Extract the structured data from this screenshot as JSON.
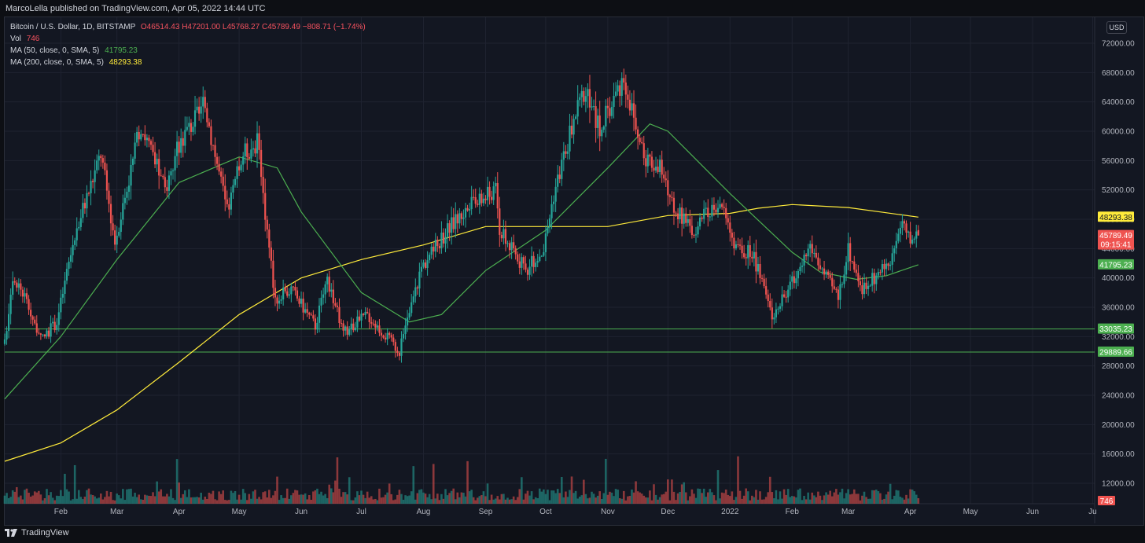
{
  "header": {
    "published_line": "MarcoLella published on TradingView.com, Apr 05, 2022 14:44 UTC",
    "currency_button": "USD"
  },
  "legend": {
    "symbol": "Bitcoin / U.S. Dollar, 1D, BITSTAMP",
    "open": "O46514.43",
    "high": "H47201.00",
    "low": "L45768.27",
    "close": "C45789.49",
    "change": "−808.71 (−1.74%)",
    "vol_label": "Vol",
    "vol_value": "746",
    "ma50_label": "MA (50, close, 0, SMA, 5)",
    "ma50_value": "41795.23",
    "ma200_label": "MA (200, close, 0, SMA, 5)",
    "ma200_value": "48293.38"
  },
  "footer": {
    "brand": "TradingView"
  },
  "colors": {
    "background": "#131722",
    "grid": "#1f2330",
    "up": "#26a69a",
    "down": "#ef5350",
    "ma50": "#4caf50",
    "ma200": "#ffeb3b",
    "support": "#4caf50",
    "axis_text": "#b2b5be"
  },
  "chart_data": {
    "type": "candlestick",
    "symbol": "Bitcoin / U.S. Dollar",
    "interval": "1D",
    "exchange": "BITSTAMP",
    "currency": "USD",
    "y_ticks": [
      12000,
      16000,
      20000,
      24000,
      28000,
      32000,
      36000,
      40000,
      44000,
      48000,
      52000,
      56000,
      60000,
      64000,
      68000,
      72000
    ],
    "y_tick_labels": [
      "12000.00",
      "16000.00",
      "20000.00",
      "24000.00",
      "28000.00",
      "32000.00",
      "36000.00",
      "40000.00",
      "44000.00",
      "48000.00",
      "52000.00",
      "56000.00",
      "60000.00",
      "64000.00",
      "68000.00",
      "72000.00"
    ],
    "x_ticks": [
      {
        "date": "2021-02-01",
        "label": "Feb"
      },
      {
        "date": "2021-03-01",
        "label": "Mar"
      },
      {
        "date": "2021-04-01",
        "label": "Apr"
      },
      {
        "date": "2021-05-01",
        "label": "May"
      },
      {
        "date": "2021-06-01",
        "label": "Jun"
      },
      {
        "date": "2021-07-01",
        "label": "Jul"
      },
      {
        "date": "2021-08-01",
        "label": "Aug"
      },
      {
        "date": "2021-09-01",
        "label": "Sep"
      },
      {
        "date": "2021-10-01",
        "label": "Oct"
      },
      {
        "date": "2021-11-01",
        "label": "Nov"
      },
      {
        "date": "2021-12-01",
        "label": "Dec"
      },
      {
        "date": "2022-01-01",
        "label": "2022"
      },
      {
        "date": "2022-02-01",
        "label": "Feb"
      },
      {
        "date": "2022-03-01",
        "label": "Mar"
      },
      {
        "date": "2022-04-01",
        "label": "Apr"
      },
      {
        "date": "2022-05-01",
        "label": "May"
      },
      {
        "date": "2022-06-01",
        "label": "Jun"
      },
      {
        "date": "2022-07-01",
        "label": "Ju"
      }
    ],
    "x_range": [
      "2021-01-04",
      "2022-07-02"
    ],
    "price_range": [
      7500,
      75300
    ],
    "last_bar": {
      "date": "2022-04-05",
      "open": 46514.43,
      "high": 47201.0,
      "low": 45768.27,
      "close": 45789.49,
      "change": -808.71,
      "change_pct": -1.74,
      "volume": 746
    },
    "price_anchors": [
      {
        "date": "2021-01-04",
        "close": 31000
      },
      {
        "date": "2021-01-08",
        "close": 40500
      },
      {
        "date": "2021-01-14",
        "close": 37500
      },
      {
        "date": "2021-01-22",
        "close": 31500
      },
      {
        "date": "2021-01-30",
        "close": 34000
      },
      {
        "date": "2021-02-08",
        "close": 46000
      },
      {
        "date": "2021-02-21",
        "close": 57000
      },
      {
        "date": "2021-02-28",
        "close": 45000
      },
      {
        "date": "2021-03-13",
        "close": 61000
      },
      {
        "date": "2021-03-25",
        "close": 52000
      },
      {
        "date": "2021-04-02",
        "close": 59000
      },
      {
        "date": "2021-04-14",
        "close": 63500
      },
      {
        "date": "2021-04-25",
        "close": 49000
      },
      {
        "date": "2021-05-03",
        "close": 57000
      },
      {
        "date": "2021-05-10",
        "close": 58500
      },
      {
        "date": "2021-05-19",
        "close": 37000
      },
      {
        "date": "2021-05-27",
        "close": 38500
      },
      {
        "date": "2021-06-08",
        "close": 33500
      },
      {
        "date": "2021-06-14",
        "close": 40000
      },
      {
        "date": "2021-06-22",
        "close": 32500
      },
      {
        "date": "2021-07-04",
        "close": 35000
      },
      {
        "date": "2021-07-20",
        "close": 30000
      },
      {
        "date": "2021-07-31",
        "close": 41500
      },
      {
        "date": "2021-08-14",
        "close": 47000
      },
      {
        "date": "2021-08-23",
        "close": 49500
      },
      {
        "date": "2021-09-06",
        "close": 52000
      },
      {
        "date": "2021-09-08",
        "close": 46500
      },
      {
        "date": "2021-09-21",
        "close": 41000
      },
      {
        "date": "2021-09-30",
        "close": 44000
      },
      {
        "date": "2021-10-05",
        "close": 51500
      },
      {
        "date": "2021-10-15",
        "close": 61500
      },
      {
        "date": "2021-10-20",
        "close": 65500
      },
      {
        "date": "2021-10-28",
        "close": 60500
      },
      {
        "date": "2021-11-09",
        "close": 67500
      },
      {
        "date": "2021-11-18",
        "close": 57000
      },
      {
        "date": "2021-11-27",
        "close": 55000
      },
      {
        "date": "2021-12-04",
        "close": 49500
      },
      {
        "date": "2021-12-13",
        "close": 46500
      },
      {
        "date": "2021-12-27",
        "close": 50500
      },
      {
        "date": "2022-01-05",
        "close": 43500
      },
      {
        "date": "2022-01-12",
        "close": 43500
      },
      {
        "date": "2022-01-22",
        "close": 35000
      },
      {
        "date": "2022-01-27",
        "close": 37000
      },
      {
        "date": "2022-02-05",
        "close": 41500
      },
      {
        "date": "2022-02-10",
        "close": 44500
      },
      {
        "date": "2022-02-18",
        "close": 40000
      },
      {
        "date": "2022-02-24",
        "close": 37500
      },
      {
        "date": "2022-03-01",
        "close": 44000
      },
      {
        "date": "2022-03-08",
        "close": 38500
      },
      {
        "date": "2022-03-16",
        "close": 40500
      },
      {
        "date": "2022-03-22",
        "close": 42500
      },
      {
        "date": "2022-03-28",
        "close": 47500
      },
      {
        "date": "2022-03-31",
        "close": 45500
      },
      {
        "date": "2022-04-05",
        "close": 45789
      }
    ],
    "ma50": [
      {
        "date": "2021-01-04",
        "value": 23500
      },
      {
        "date": "2021-02-01",
        "value": 32000
      },
      {
        "date": "2021-03-01",
        "value": 42500
      },
      {
        "date": "2021-04-01",
        "value": 53000
      },
      {
        "date": "2021-05-01",
        "value": 56500
      },
      {
        "date": "2021-05-20",
        "value": 55000
      },
      {
        "date": "2021-06-01",
        "value": 49000
      },
      {
        "date": "2021-07-01",
        "value": 38000
      },
      {
        "date": "2021-07-25",
        "value": 34000
      },
      {
        "date": "2021-08-10",
        "value": 35000
      },
      {
        "date": "2021-09-01",
        "value": 41000
      },
      {
        "date": "2021-10-01",
        "value": 46500
      },
      {
        "date": "2021-11-01",
        "value": 55000
      },
      {
        "date": "2021-11-22",
        "value": 61000
      },
      {
        "date": "2021-12-01",
        "value": 60000
      },
      {
        "date": "2022-01-01",
        "value": 51500
      },
      {
        "date": "2022-02-01",
        "value": 43500
      },
      {
        "date": "2022-02-15",
        "value": 40800
      },
      {
        "date": "2022-03-05",
        "value": 39800
      },
      {
        "date": "2022-03-20",
        "value": 40300
      },
      {
        "date": "2022-04-05",
        "value": 41795.23
      }
    ],
    "ma200": [
      {
        "date": "2021-01-04",
        "value": 15000
      },
      {
        "date": "2021-02-01",
        "value": 17500
      },
      {
        "date": "2021-03-01",
        "value": 22000
      },
      {
        "date": "2021-04-01",
        "value": 28500
      },
      {
        "date": "2021-05-01",
        "value": 35000
      },
      {
        "date": "2021-06-01",
        "value": 40000
      },
      {
        "date": "2021-07-01",
        "value": 42500
      },
      {
        "date": "2021-08-01",
        "value": 44500
      },
      {
        "date": "2021-09-01",
        "value": 47000
      },
      {
        "date": "2021-10-01",
        "value": 47000
      },
      {
        "date": "2021-11-01",
        "value": 47000
      },
      {
        "date": "2021-12-01",
        "value": 48500
      },
      {
        "date": "2022-01-01",
        "value": 48800
      },
      {
        "date": "2022-01-15",
        "value": 49500
      },
      {
        "date": "2022-02-01",
        "value": 50000
      },
      {
        "date": "2022-03-01",
        "value": 49600
      },
      {
        "date": "2022-04-05",
        "value": 48293.38
      }
    ],
    "support_lines": [
      33035.23,
      29889.66
    ],
    "price_labels": [
      {
        "value": 48293.38,
        "text": "48293.38",
        "color": "#ffeb3b",
        "text_color": "#131722"
      },
      {
        "value": 45789.49,
        "text": "45789.49",
        "sub": "09:15:41",
        "color": "#ef5350",
        "text_color": "#ffffff"
      },
      {
        "value": 41795.23,
        "text": "41795.23",
        "color": "#4caf50",
        "text_color": "#ffffff"
      },
      {
        "value": 33035.23,
        "text": "33035.23",
        "color": "#4caf50",
        "text_color": "#ffffff"
      },
      {
        "value": 29889.66,
        "text": "29889.66",
        "color": "#4caf50",
        "text_color": "#ffffff"
      }
    ],
    "volume_label": {
      "text": "746",
      "color": "#ef5350"
    }
  }
}
